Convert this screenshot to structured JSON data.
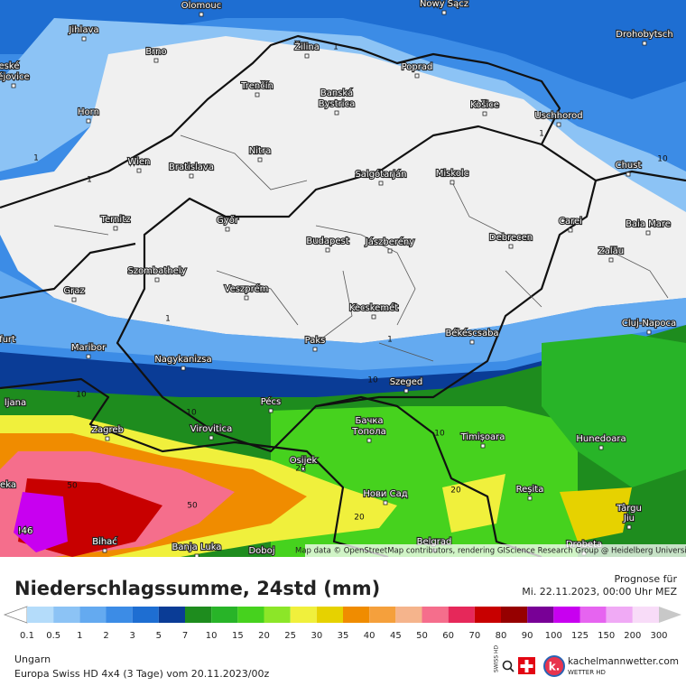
{
  "map": {
    "cities": [
      "Olomouc",
      "Nowy Sącz",
      "Jihlava",
      "Brno",
      "Žilina",
      "Drohobytsch",
      "Poprad",
      "eské",
      "ějovice",
      "Trenčín",
      "Banská",
      "Bystrica",
      "Horn",
      "Košice",
      "Uschhorod",
      "Nitra",
      "Wien",
      "Bratislava",
      "Salgótarján",
      "Miskolc",
      "Chust",
      "Ternitz",
      "Győr",
      "Carei",
      "Baia Mare",
      "Budapest",
      "Jászberény",
      "Debrecen",
      "Szombathely",
      "Zalău",
      "Graz",
      "Veszprém",
      "Kecskemét",
      "Cluj-Napoca",
      "furt",
      "Maribor",
      "Paks",
      "Békéscsaba",
      "Nagykanizsa",
      "ljana",
      "Pécs",
      "Szeged",
      "Бачка",
      "Топола",
      "Timișoara",
      "Hunedoara",
      "Zagreb",
      "Virovitica",
      "Osijek",
      "eka",
      "Нови Сад",
      "Reșita",
      "Târgu",
      "Jiu",
      "Bihać",
      "Banja Luka",
      "Doboj",
      "Belgrad",
      "Drobeta"
    ],
    "contour_labels": [
      "1",
      "1",
      "1",
      "1",
      "1",
      "1",
      "10",
      "10",
      "10",
      "10",
      "10",
      "20",
      "20",
      "20",
      "50",
      "50",
      "!46"
    ],
    "attribution": "Map data © OpenStreetMap contributors, rendering GIScience Research Group @ Heidelberg University"
  },
  "header": {
    "title": "Niederschlagssumme, 24std (mm)",
    "forecast_label": "Prognose für",
    "forecast_time": "Mi. 22.11.2023, 00:00 Uhr MEZ"
  },
  "legend": {
    "items": [
      {
        "value": 0.1,
        "color": "#b4dcfa"
      },
      {
        "value": 0.5,
        "color": "#8cc3f5"
      },
      {
        "value": 1,
        "color": "#64aaf0"
      },
      {
        "value": 2,
        "color": "#3c8ce6"
      },
      {
        "value": 3,
        "color": "#1e6ed2"
      },
      {
        "value": 5,
        "color": "#0a3c96"
      },
      {
        "value": 7,
        "color": "#1e8c1e"
      },
      {
        "value": 10,
        "color": "#28b428"
      },
      {
        "value": 15,
        "color": "#46d21e"
      },
      {
        "value": 20,
        "color": "#8ce628"
      },
      {
        "value": 25,
        "color": "#f0f03c"
      },
      {
        "value": 30,
        "color": "#e6d200"
      },
      {
        "value": 35,
        "color": "#f08c00"
      },
      {
        "value": 40,
        "color": "#f5a03c"
      },
      {
        "value": 45,
        "color": "#f5b48c"
      },
      {
        "value": 50,
        "color": "#f56e8c"
      },
      {
        "value": 60,
        "color": "#e6285a"
      },
      {
        "value": 70,
        "color": "#c80000"
      },
      {
        "value": 80,
        "color": "#960000"
      },
      {
        "value": 90,
        "color": "#780096"
      },
      {
        "value": 100,
        "color": "#c800f0"
      },
      {
        "value": 125,
        "color": "#e664f0"
      },
      {
        "value": 150,
        "color": "#f0aaf5"
      },
      {
        "value": 200,
        "color": "#f8dcf8"
      },
      {
        "value": 300,
        "color": "#c8c8c8"
      }
    ]
  },
  "footer": {
    "region": "Ungarn",
    "model": "Europa Swiss HD 4x4 (3 Tage) vom 20.11.2023/00z",
    "badge": "SWISS HD",
    "brand": "kachelmannwetter.com",
    "brand_sub": "WETTER HD"
  }
}
